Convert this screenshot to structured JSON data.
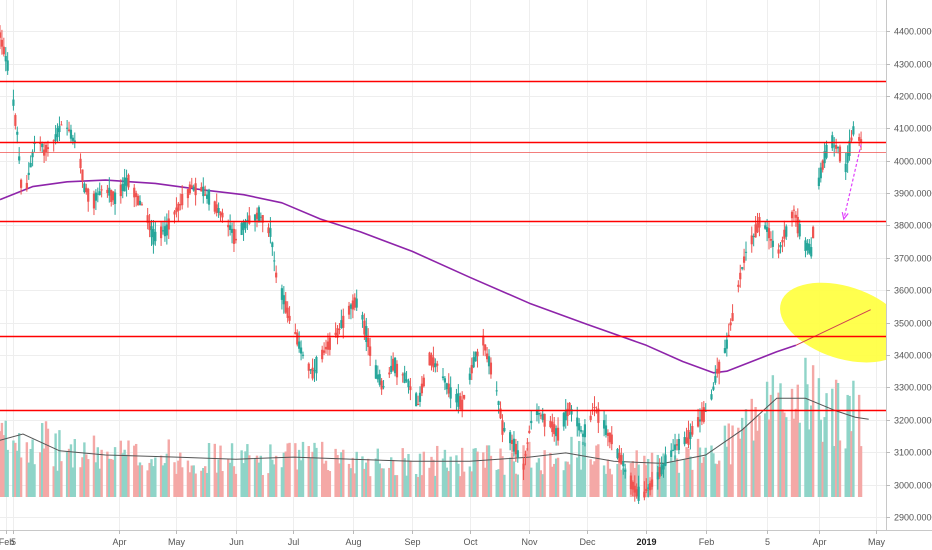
{
  "chart_data": {
    "type": "candlestick",
    "title": "",
    "xlabel": "",
    "ylabel": "",
    "ylim": [
      2850,
      4500
    ],
    "y_ticks": [
      2900,
      3000,
      3100,
      3200,
      3300,
      3400,
      3500,
      3600,
      3700,
      3800,
      3900,
      4000,
      4100,
      4200,
      4300,
      4400
    ],
    "y_tick_labels": [
      "2900.0000",
      "3000.0000",
      "3100.0000",
      "3200.0000",
      "3300.0000",
      "3400.0000",
      "3500.0000",
      "3600.0000",
      "3700.0000",
      "3800.0000",
      "3900.0000",
      "4000.0000",
      "4100.0000",
      "4200.0000",
      "4300.0000",
      "4400.0000"
    ],
    "x_range": [
      "2018-01-29",
      "2019-05-06"
    ],
    "x_ticks": [
      {
        "date": "2018-02-01",
        "label": "Feb",
        "bold": false
      },
      {
        "date": "2018-02-05",
        "label": "5",
        "bold": false
      },
      {
        "date": "2018-04-01",
        "label": "Apr",
        "bold": false
      },
      {
        "date": "2018-05-01",
        "label": "May",
        "bold": false
      },
      {
        "date": "2018-06-01",
        "label": "Jun",
        "bold": false
      },
      {
        "date": "2018-07-01",
        "label": "Jul",
        "bold": false
      },
      {
        "date": "2018-08-01",
        "label": "Aug",
        "bold": false
      },
      {
        "date": "2018-09-01",
        "label": "Sep",
        "bold": false
      },
      {
        "date": "2018-10-01",
        "label": "Oct",
        "bold": false
      },
      {
        "date": "2018-11-01",
        "label": "Nov",
        "bold": false
      },
      {
        "date": "2018-12-01",
        "label": "Dec",
        "bold": false
      },
      {
        "date": "2019-01-01",
        "label": "2019",
        "bold": true
      },
      {
        "date": "2019-02-01",
        "label": "Feb",
        "bold": false
      },
      {
        "date": "2019-03-05",
        "label": "5",
        "bold": false
      },
      {
        "date": "2019-04-01",
        "label": "Apr",
        "bold": false
      },
      {
        "date": "2019-05-01",
        "label": "May",
        "bold": false
      }
    ],
    "levels": [
      {
        "value": 4247.1121,
        "label": "4247.1121",
        "color": "#ff0000"
      },
      {
        "value": 4056.3714,
        "label": "4056.3714",
        "color": "#ff0000"
      },
      {
        "value": 4025.6108,
        "label": "4025.6108",
        "color": "#ef5350"
      },
      {
        "value": 3814.7664,
        "label": "3814.7664",
        "color": "#ff0000"
      },
      {
        "value": 3458.717,
        "label": "3458.7170",
        "color": "#ff0000"
      },
      {
        "value": 3229.8281,
        "label": "3229.8281",
        "color": "#ff0000"
      }
    ],
    "price_path": [
      [
        "2018-01-29",
        4390
      ],
      [
        "2018-02-03",
        4270
      ],
      [
        "2018-02-07",
        4080
      ],
      [
        "2018-02-10",
        3850
      ],
      [
        "2018-02-13",
        3960
      ],
      [
        "2018-02-17",
        4080
      ],
      [
        "2018-02-21",
        4030
      ],
      [
        "2018-02-26",
        4060
      ],
      [
        "2018-03-03",
        4120
      ],
      [
        "2018-03-07",
        4080
      ],
      [
        "2018-03-11",
        4030
      ],
      [
        "2018-03-14",
        3920
      ],
      [
        "2018-03-18",
        3870
      ],
      [
        "2018-03-24",
        3920
      ],
      [
        "2018-03-30",
        3880
      ],
      [
        "2018-04-06",
        3940
      ],
      [
        "2018-04-11",
        3880
      ],
      [
        "2018-04-15",
        3840
      ],
      [
        "2018-04-19",
        3760
      ],
      [
        "2018-04-26",
        3790
      ],
      [
        "2018-05-02",
        3860
      ],
      [
        "2018-05-09",
        3920
      ],
      [
        "2018-05-14",
        3910
      ],
      [
        "2018-05-20",
        3870
      ],
      [
        "2018-05-26",
        3820
      ],
      [
        "2018-06-01",
        3760
      ],
      [
        "2018-06-08",
        3820
      ],
      [
        "2018-06-14",
        3830
      ],
      [
        "2018-06-19",
        3780
      ],
      [
        "2018-06-22",
        3650
      ],
      [
        "2018-06-26",
        3570
      ],
      [
        "2018-07-01",
        3480
      ],
      [
        "2018-07-06",
        3400
      ],
      [
        "2018-07-11",
        3340
      ],
      [
        "2018-07-16",
        3400
      ],
      [
        "2018-07-22",
        3450
      ],
      [
        "2018-07-30",
        3540
      ],
      [
        "2018-08-04",
        3570
      ],
      [
        "2018-08-08",
        3460
      ],
      [
        "2018-08-12",
        3360
      ],
      [
        "2018-08-17",
        3300
      ],
      [
        "2018-08-22",
        3370
      ],
      [
        "2018-08-28",
        3330
      ],
      [
        "2018-09-04",
        3250
      ],
      [
        "2018-09-10",
        3390
      ],
      [
        "2018-09-15",
        3360
      ],
      [
        "2018-09-21",
        3280
      ],
      [
        "2018-09-27",
        3250
      ],
      [
        "2018-10-03",
        3380
      ],
      [
        "2018-10-08",
        3440
      ],
      [
        "2018-10-14",
        3320
      ],
      [
        "2018-10-18",
        3180
      ],
      [
        "2018-10-24",
        3120
      ],
      [
        "2018-10-29",
        3060
      ],
      [
        "2018-11-03",
        3230
      ],
      [
        "2018-11-09",
        3200
      ],
      [
        "2018-11-16",
        3160
      ],
      [
        "2018-11-22",
        3240
      ],
      [
        "2018-11-29",
        3150
      ],
      [
        "2018-12-05",
        3240
      ],
      [
        "2018-12-11",
        3170
      ],
      [
        "2018-12-17",
        3100
      ],
      [
        "2018-12-23",
        3020
      ],
      [
        "2018-12-29",
        2960
      ],
      [
        "2019-01-04",
        3000
      ],
      [
        "2019-01-10",
        3060
      ],
      [
        "2019-01-16",
        3120
      ],
      [
        "2019-01-22",
        3140
      ],
      [
        "2019-01-27",
        3180
      ],
      [
        "2019-02-01",
        3230
      ],
      [
        "2019-02-04",
        3270
      ],
      [
        "2019-02-07",
        3350
      ],
      [
        "2019-02-11",
        3410
      ],
      [
        "2019-02-15",
        3520
      ],
      [
        "2019-02-19",
        3640
      ],
      [
        "2019-02-22",
        3720
      ],
      [
        "2019-02-26",
        3770
      ],
      [
        "2019-03-02",
        3820
      ],
      [
        "2019-03-06",
        3780
      ],
      [
        "2019-03-10",
        3700
      ],
      [
        "2019-03-14",
        3770
      ],
      [
        "2019-03-19",
        3850
      ],
      [
        "2019-03-24",
        3740
      ],
      [
        "2019-03-28",
        3720
      ],
      [
        "2019-03-31",
        3900
      ],
      [
        "2019-04-03",
        3990
      ],
      [
        "2019-04-07",
        4060
      ],
      [
        "2019-04-11",
        4040
      ],
      [
        "2019-04-15",
        3980
      ],
      [
        "2019-04-19",
        4090
      ],
      [
        "2019-04-23",
        4060
      ]
    ],
    "moving_average": [
      [
        "2018-01-29",
        3880
      ],
      [
        "2018-02-15",
        3920
      ],
      [
        "2018-03-05",
        3935
      ],
      [
        "2018-03-25",
        3940
      ],
      [
        "2018-04-20",
        3930
      ],
      [
        "2018-05-15",
        3910
      ],
      [
        "2018-06-05",
        3895
      ],
      [
        "2018-06-25",
        3870
      ],
      [
        "2018-07-15",
        3820
      ],
      [
        "2018-08-05",
        3780
      ],
      [
        "2018-09-01",
        3720
      ],
      [
        "2018-10-01",
        3640
      ],
      [
        "2018-11-01",
        3560
      ],
      [
        "2018-12-01",
        3495
      ],
      [
        "2019-01-01",
        3430
      ],
      [
        "2019-01-20",
        3380
      ],
      [
        "2019-02-05",
        3345
      ],
      [
        "2019-02-12",
        3350
      ],
      [
        "2019-02-25",
        3380
      ],
      [
        "2019-03-10",
        3410
      ],
      [
        "2019-03-20",
        3430
      ]
    ],
    "projection_arrow": {
      "from": [
        "2019-04-23",
        4050
      ],
      "to": [
        "2019-04-14",
        3820
      ],
      "color": "#e040fb"
    },
    "volume_series": {
      "name": "",
      "ma": [
        [
          "2018-01-29",
          0.27
        ],
        [
          "2018-02-10",
          0.3
        ],
        [
          "2018-03-01",
          0.22
        ],
        [
          "2018-03-25",
          0.2
        ],
        [
          "2018-05-01",
          0.19
        ],
        [
          "2018-06-01",
          0.18
        ],
        [
          "2018-07-01",
          0.19
        ],
        [
          "2018-08-01",
          0.18
        ],
        [
          "2018-09-01",
          0.17
        ],
        [
          "2018-10-01",
          0.17
        ],
        [
          "2018-11-01",
          0.19
        ],
        [
          "2018-11-20",
          0.21
        ],
        [
          "2018-12-15",
          0.17
        ],
        [
          "2019-01-10",
          0.16
        ],
        [
          "2019-02-01",
          0.2
        ],
        [
          "2019-02-20",
          0.32
        ],
        [
          "2019-03-10",
          0.47
        ],
        [
          "2019-03-25",
          0.47
        ],
        [
          "2019-04-10",
          0.41
        ],
        [
          "2019-04-20",
          0.38
        ],
        [
          "2019-04-27",
          0.37
        ]
      ]
    },
    "highlight_ellipse": {
      "center": [
        "2019-04-14",
        3500
      ],
      "color": "#ffff3b"
    },
    "grid": true
  }
}
